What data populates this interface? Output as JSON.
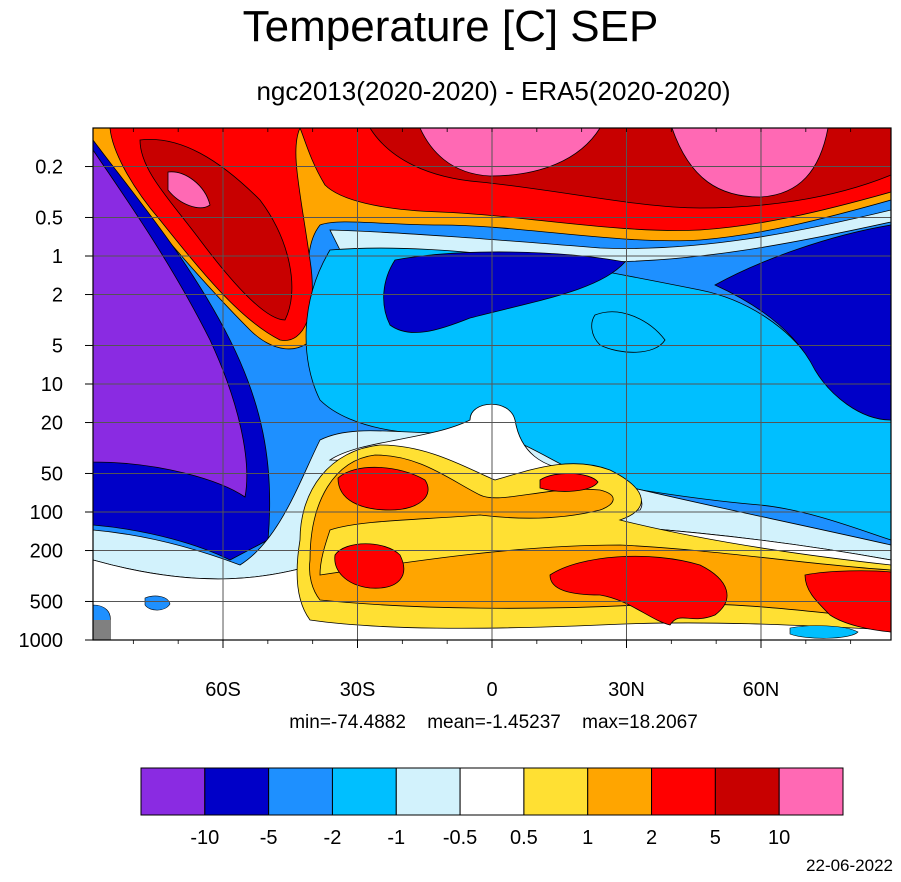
{
  "chart_data": {
    "type": "contour",
    "title": "Temperature [C] SEP",
    "subtitle": "ngc2013(2020-2020) - ERA5(2020-2020)",
    "x_axis": {
      "type": "latitude",
      "ticks": [
        {
          "value": -60,
          "label": "60S"
        },
        {
          "value": -30,
          "label": "30S"
        },
        {
          "value": 0,
          "label": "0"
        },
        {
          "value": 30,
          "label": "30N"
        },
        {
          "value": 60,
          "label": "60N"
        }
      ],
      "range": [
        -89,
        89
      ]
    },
    "y_axis": {
      "type": "pressure",
      "scale": "log",
      "inverted": true,
      "range": [
        1000,
        0.1
      ],
      "ticks": [
        {
          "value": 0.2,
          "label": "0.2"
        },
        {
          "value": 0.5,
          "label": "0.5"
        },
        {
          "value": 1,
          "label": "1"
        },
        {
          "value": 2,
          "label": "2"
        },
        {
          "value": 5,
          "label": "5"
        },
        {
          "value": 10,
          "label": "10"
        },
        {
          "value": 20,
          "label": "20"
        },
        {
          "value": 50,
          "label": "50"
        },
        {
          "value": 100,
          "label": "100"
        },
        {
          "value": 200,
          "label": "200"
        },
        {
          "value": 500,
          "label": "500"
        },
        {
          "value": 1000,
          "label": "1000"
        }
      ]
    },
    "grid": true,
    "stats": {
      "min": "min=-74.4882",
      "mean": "mean=-1.45237",
      "max": "max=18.2067"
    },
    "colorbar": {
      "levels": [
        "-10",
        "-5",
        "-2",
        "-1",
        "-0.5",
        "0.5",
        "1",
        "2",
        "5",
        "10"
      ],
      "colors": [
        "#8a2be2",
        "#0000c8",
        "#1e90ff",
        "#00bfff",
        "#d2f2fc",
        "#ffffff",
        "#ffe033",
        "#ffa500",
        "#ff0000",
        "#c80000",
        "#ff69b4"
      ]
    },
    "date": "22-06-2022"
  }
}
